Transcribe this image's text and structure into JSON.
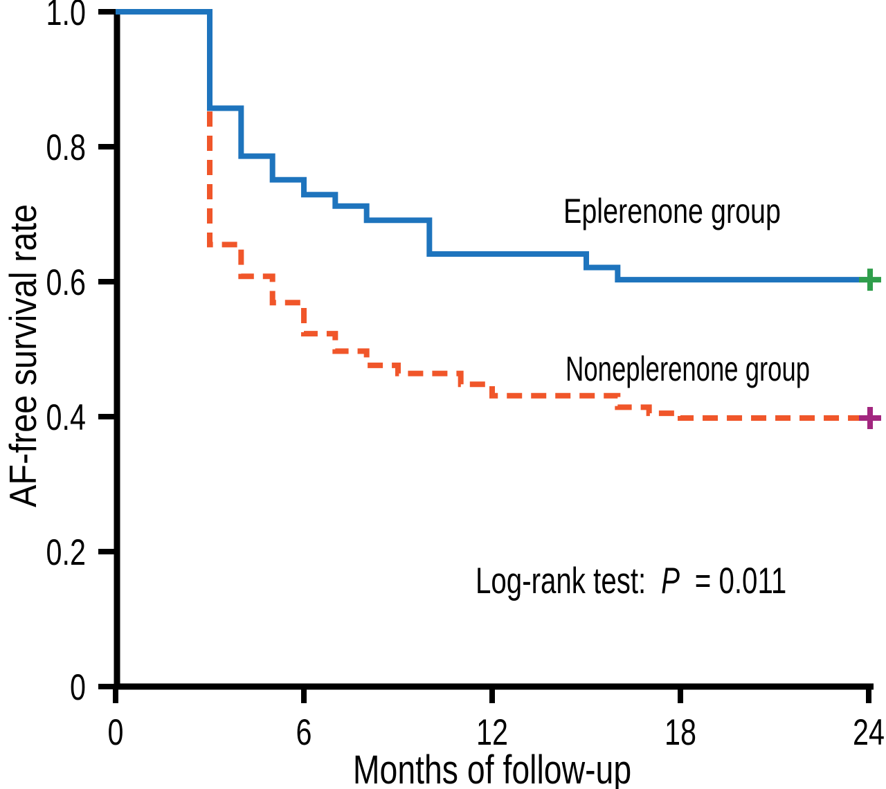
{
  "figure": {
    "background": "#ffffff",
    "axis_color": "#000000",
    "text_color": "#000000"
  },
  "chart_data": {
    "type": "line",
    "variant": "kaplan_meier_step_survival",
    "title": "",
    "xlabel": "Months of follow-up",
    "ylabel": "AF-free survival rate",
    "xlim": [
      0,
      24
    ],
    "ylim": [
      0,
      1.0
    ],
    "xticks": [
      0,
      6,
      12,
      18,
      24
    ],
    "xtick_labels": [
      "0",
      "6",
      "12",
      "18",
      "24"
    ],
    "yticks": [
      1.0,
      0.8,
      0.6,
      0.4,
      0.2,
      0
    ],
    "ytick_labels": [
      "1.0",
      "0.8",
      "0.6",
      "0.4",
      "0.2",
      "0"
    ],
    "grid": false,
    "legend_position": "inline-right-of-curves",
    "annotation": {
      "prefix": "Log-rank test:",
      "stat": "P",
      "value": "= 0.011"
    },
    "series": [
      {
        "name": "Eplerenone group",
        "color": "#1e74bd",
        "line_style": "solid",
        "line_width": 8,
        "steps": [
          [
            0,
            1.0
          ],
          [
            3,
            0.857
          ],
          [
            4,
            0.786
          ],
          [
            5,
            0.751
          ],
          [
            6,
            0.729
          ],
          [
            7,
            0.712
          ],
          [
            8,
            0.691
          ],
          [
            10,
            0.641
          ],
          [
            15,
            0.621
          ],
          [
            16,
            0.603
          ],
          [
            24,
            0.603
          ]
        ],
        "censored": {
          "time": 24,
          "rate": 0.603,
          "marker": "plus",
          "color": "#2f9e4b"
        }
      },
      {
        "name": "Noneplerenone group",
        "color": "#f0562a",
        "line_style": "dashed",
        "line_width": 8,
        "steps": [
          [
            0,
            1.0
          ],
          [
            3,
            0.655
          ],
          [
            4,
            0.608
          ],
          [
            5,
            0.569
          ],
          [
            6,
            0.523
          ],
          [
            7,
            0.497
          ],
          [
            8,
            0.476
          ],
          [
            9,
            0.464
          ],
          [
            11,
            0.448
          ],
          [
            12,
            0.431
          ],
          [
            16,
            0.414
          ],
          [
            17,
            0.405
          ],
          [
            18,
            0.398
          ],
          [
            24,
            0.398
          ]
        ],
        "censored": {
          "time": 24,
          "rate": 0.398,
          "marker": "plus",
          "color": "#a2267f"
        }
      }
    ]
  }
}
